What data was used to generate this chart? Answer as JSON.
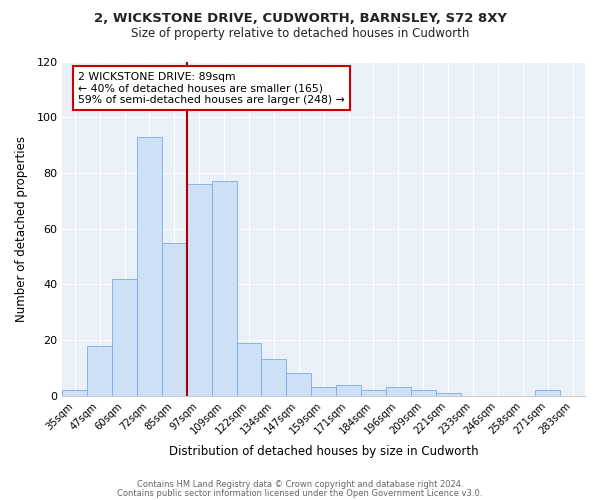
{
  "title": "2, WICKSTONE DRIVE, CUDWORTH, BARNSLEY, S72 8XY",
  "subtitle": "Size of property relative to detached houses in Cudworth",
  "xlabel": "Distribution of detached houses by size in Cudworth",
  "ylabel": "Number of detached properties",
  "bar_color": "#cde0f5",
  "bar_edge_color": "#7aace6",
  "background_color": "#eaf0f8",
  "categories": [
    "35sqm",
    "47sqm",
    "60sqm",
    "72sqm",
    "85sqm",
    "97sqm",
    "109sqm",
    "122sqm",
    "134sqm",
    "147sqm",
    "159sqm",
    "171sqm",
    "184sqm",
    "196sqm",
    "209sqm",
    "221sqm",
    "233sqm",
    "246sqm",
    "258sqm",
    "271sqm",
    "283sqm"
  ],
  "values": [
    2,
    18,
    42,
    93,
    55,
    76,
    77,
    19,
    13,
    8,
    3,
    4,
    2,
    3,
    2,
    1,
    0,
    0,
    0,
    2,
    0
  ],
  "ylim": [
    0,
    120
  ],
  "yticks": [
    0,
    20,
    40,
    60,
    80,
    100,
    120
  ],
  "vline_color": "#aa0000",
  "vline_x_index": 4,
  "annotation_text": "2 WICKSTONE DRIVE: 89sqm\n← 40% of detached houses are smaller (165)\n59% of semi-detached houses are larger (248) →",
  "annotation_box_color": "#ffffff",
  "annotation_box_edge": "#cc0000",
  "footer_line1": "Contains HM Land Registry data © Crown copyright and database right 2024.",
  "footer_line2": "Contains public sector information licensed under the Open Government Licence v3.0."
}
